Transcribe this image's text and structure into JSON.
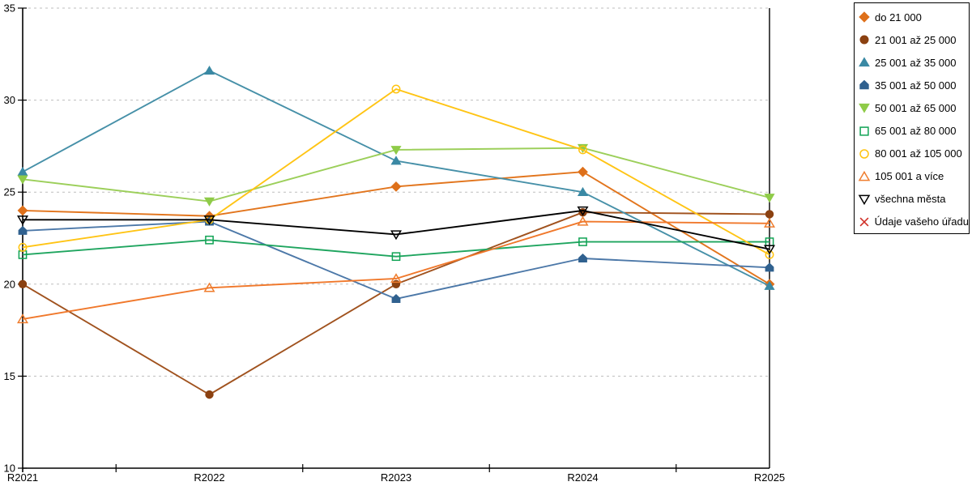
{
  "chart_data": {
    "type": "line",
    "title": "",
    "xlabel": "",
    "ylabel": "",
    "categories": [
      "R2021",
      "R2022",
      "R2023",
      "R2024",
      "R2025"
    ],
    "ylim": [
      10,
      35
    ],
    "yticks": [
      10,
      15,
      20,
      25,
      30,
      35
    ],
    "grid": "horizontal-dashed",
    "legend_position": "right-outside",
    "series": [
      {
        "name": "do 21 000",
        "marker": "diamond",
        "marker_fill": "filled",
        "color": "#E2751D",
        "marker_color": "#DE701A",
        "values": [
          24.0,
          23.7,
          25.3,
          26.1,
          20.0
        ]
      },
      {
        "name": "21 001 až 25 000",
        "marker": "circle",
        "marker_fill": "filled",
        "color": "#A0521E",
        "marker_color": "#8B4111",
        "values": [
          20.0,
          14.0,
          20.0,
          23.9,
          23.8
        ]
      },
      {
        "name": "25 001 až 35 000",
        "marker": "triangle-up",
        "marker_fill": "filled",
        "color": "#4690A8",
        "marker_color": "#3A89A4",
        "values": [
          26.1,
          31.6,
          26.7,
          25.0,
          19.9
        ]
      },
      {
        "name": "35 001 až 50 000",
        "marker": "pentagon",
        "marker_fill": "filled",
        "color": "#4C78A8",
        "marker_color": "#30618F",
        "values": [
          22.9,
          23.4,
          19.2,
          21.4,
          20.9
        ]
      },
      {
        "name": "50 001 až 65 000",
        "marker": "triangle-down",
        "marker_fill": "filled",
        "color": "#9CCF5A",
        "marker_color": "#8FCB48",
        "values": [
          25.7,
          24.5,
          27.3,
          27.4,
          24.7
        ]
      },
      {
        "name": "65 001 až 80 000",
        "marker": "square",
        "marker_fill": "open",
        "color": "#1FA55F",
        "marker_color": "#10A354",
        "values": [
          21.6,
          22.4,
          21.5,
          22.3,
          22.3
        ]
      },
      {
        "name": "80 001 až 105 000",
        "marker": "circle",
        "marker_fill": "open",
        "color": "#FFC414",
        "marker_color": "#FFC30F",
        "values": [
          22.0,
          23.5,
          30.6,
          27.3,
          21.6
        ]
      },
      {
        "name": "105 001 a více",
        "marker": "triangle-up",
        "marker_fill": "open",
        "color": "#F0782B",
        "marker_color": "#EF7D2E",
        "values": [
          18.1,
          19.8,
          20.3,
          23.4,
          23.3
        ]
      },
      {
        "name": "všechna města",
        "marker": "triangle-down",
        "marker_fill": "open",
        "color": "#000000",
        "marker_color": "#000000",
        "values": [
          23.5,
          23.5,
          22.7,
          24.0,
          21.9
        ]
      },
      {
        "name": "Údaje vašeho úřadu",
        "marker": "x",
        "marker_fill": "open",
        "color": "#D03028",
        "marker_color": "#D03028",
        "values": []
      }
    ]
  },
  "colors": {
    "background": "#ffffff",
    "axis": "#000000",
    "gridline": "#bdbdbd",
    "legend_border": "#000000"
  }
}
